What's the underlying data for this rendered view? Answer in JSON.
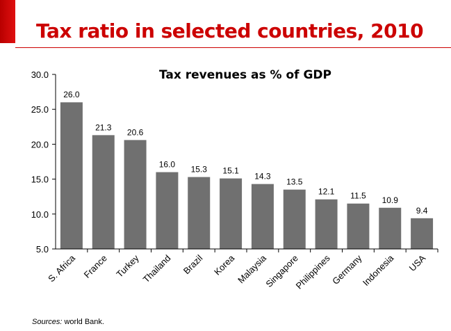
{
  "slide": {
    "title": "Tax ratio in selected countries, 2010",
    "sources_label": "Sources:",
    "sources_text": " world Bank."
  },
  "colors": {
    "accent": "#cc0000",
    "bar": "#707070"
  },
  "chart_data": {
    "type": "bar",
    "title": "Tax revenues as % of GDP",
    "xlabel": "",
    "ylabel": "",
    "categories": [
      "S. Africa",
      "France",
      "Turkey",
      "Thailand",
      "Brazil",
      "Korea",
      "Malaysia",
      "Singapore",
      "Philippines",
      "Germany",
      "Indonesia",
      "USA"
    ],
    "values": [
      26.0,
      21.3,
      20.6,
      16.0,
      15.3,
      15.1,
      14.3,
      13.5,
      12.1,
      11.5,
      10.9,
      9.4
    ],
    "value_labels": [
      "26.0",
      "21.3",
      "20.6",
      "16.0",
      "15.3",
      "15.1",
      "14.3",
      "13.5",
      "12.1",
      "11.5",
      "10.9",
      "9.4"
    ],
    "yticks": [
      "5.0",
      "10.0",
      "15.0",
      "20.0",
      "25.0",
      "30.0"
    ],
    "ylim": [
      5,
      30
    ],
    "grid": false,
    "legend": "none"
  }
}
